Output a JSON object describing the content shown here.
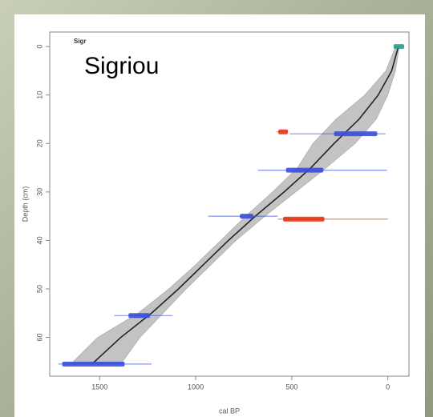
{
  "chart_data": {
    "type": "age-depth",
    "title": "Sigr",
    "annotation": "Sigriou",
    "x_label": "cal BP",
    "y_label": "Depth (cm)",
    "xlim": [
      1760,
      -110
    ],
    "ylim": [
      -3,
      68
    ],
    "xticks": [
      1500,
      1000,
      500,
      0
    ],
    "yticks": [
      0,
      10,
      20,
      30,
      40,
      50,
      60
    ],
    "model": {
      "color": "#222222",
      "band_color": "#bdbdbd",
      "depths": [
        0,
        5,
        10,
        15,
        20,
        25,
        30,
        35,
        40,
        45,
        50,
        55,
        60,
        65.5
      ],
      "ages": [
        -55,
        -20,
        50,
        150,
        280,
        400,
        540,
        690,
        830,
        960,
        1090,
        1230,
        1390,
        1540
      ],
      "min": [
        -60,
        -40,
        0,
        60,
        170,
        320,
        480,
        640,
        790,
        920,
        1050,
        1170,
        1290,
        1390
      ],
      "max": [
        -40,
        10,
        120,
        270,
        390,
        470,
        600,
        740,
        870,
        1000,
        1140,
        1300,
        1510,
        1650
      ]
    },
    "dates": [
      {
        "color": "#2a9d8f",
        "depth": 0,
        "range": [
          -35,
          -80
        ],
        "core": [
          -30,
          -85
        ]
      },
      {
        "color": "#e63312",
        "depth": 17.6,
        "range": [
          580,
          540
        ],
        "core": [
          570,
          520
        ]
      },
      {
        "color": "#3a4fd8",
        "depth": 18,
        "range": [
          510,
          12
        ],
        "core": [
          280,
          55
        ]
      },
      {
        "color": "#3a4fd8",
        "depth": 25.5,
        "range": [
          677,
          4
        ],
        "core": [
          530,
          336
        ]
      },
      {
        "color": "#3a4fd8",
        "depth": 35,
        "range": [
          935,
          573
        ],
        "core": [
          770,
          700
        ]
      },
      {
        "color": "#e63312",
        "depth": 35.6,
        "range": [
          573,
          0
        ],
        "core": [
          545,
          330
        ]
      },
      {
        "color": "#3a4fd8",
        "depth": 55.5,
        "range": [
          1425,
          1120
        ],
        "core": [
          1350,
          1238
        ]
      },
      {
        "color": "#3a4fd8",
        "depth": 65.5,
        "range": [
          1715,
          1230
        ],
        "core": [
          1695,
          1370
        ]
      }
    ]
  }
}
